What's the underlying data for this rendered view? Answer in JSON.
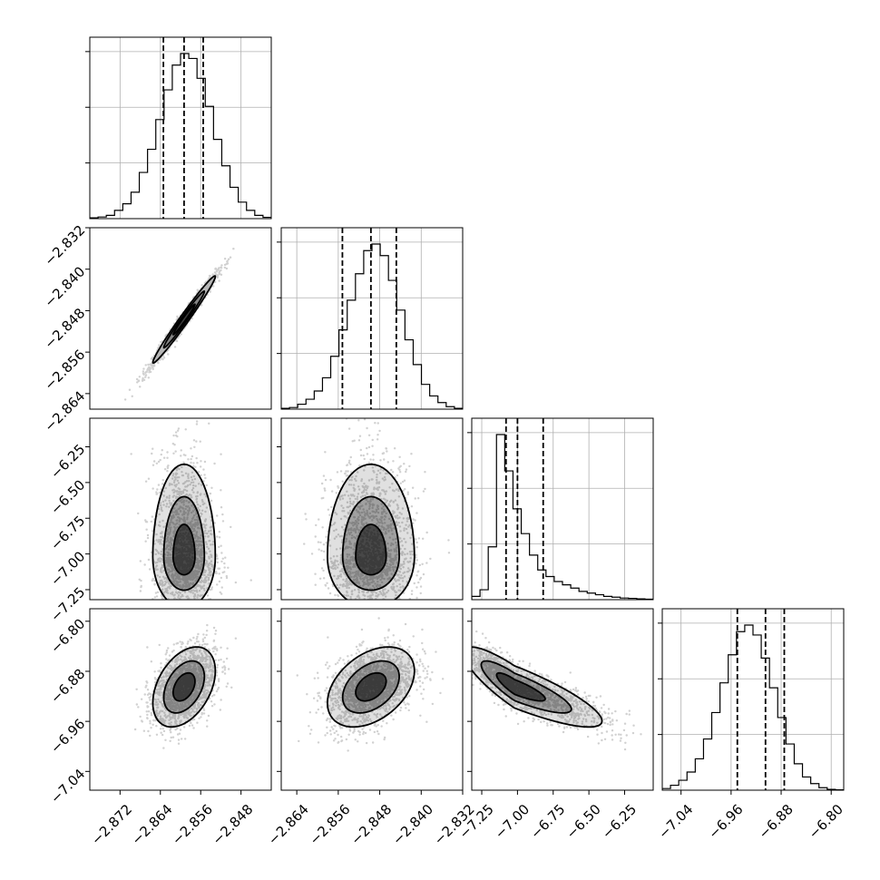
{
  "chart_data": {
    "type": "corner",
    "n_params": 4,
    "grid": true,
    "axes": [
      {
        "range": [
          -2.878,
          -2.842
        ],
        "ticks": [
          -2.872,
          -2.864,
          -2.856,
          -2.848
        ],
        "tick_labels": [
          "−2.872",
          "−2.864",
          "−2.856",
          "−2.848"
        ]
      },
      {
        "range": [
          -2.867,
          -2.832
        ],
        "ticks": [
          -2.864,
          -2.856,
          -2.848,
          -2.84,
          -2.832
        ],
        "tick_labels": [
          "−2.864",
          "−2.856",
          "−2.848",
          "−2.840",
          "−2.832"
        ]
      },
      {
        "range": [
          -7.32,
          -6.05
        ],
        "ticks": [
          -7.25,
          -7.0,
          -6.75,
          -6.5,
          -6.25
        ],
        "tick_labels": [
          "−7.25",
          "−7.00",
          "−6.75",
          "−6.50",
          "−6.25"
        ]
      },
      {
        "range": [
          -7.07,
          -6.78
        ],
        "ticks": [
          -7.04,
          -6.96,
          -6.88,
          -6.8
        ],
        "tick_labels": [
          "−7.04",
          "−6.96",
          "−6.88",
          "−6.80"
        ]
      }
    ],
    "quantiles": [
      [
        -2.8634,
        -2.8593,
        -2.8555
      ],
      [
        -2.8552,
        -2.8497,
        -2.8448
      ],
      [
        -7.08,
        -7.0,
        -6.82
      ],
      [
        -6.95,
        -6.905,
        -6.875
      ]
    ],
    "histograms": [
      [
        0.005,
        0.01,
        0.02,
        0.05,
        0.09,
        0.16,
        0.28,
        0.42,
        0.6,
        0.78,
        0.93,
        1.0,
        0.97,
        0.85,
        0.68,
        0.48,
        0.32,
        0.19,
        0.1,
        0.05,
        0.02,
        0.008
      ],
      [
        0.005,
        0.01,
        0.03,
        0.06,
        0.11,
        0.19,
        0.32,
        0.48,
        0.66,
        0.82,
        0.96,
        1.0,
        0.93,
        0.78,
        0.6,
        0.42,
        0.27,
        0.15,
        0.08,
        0.04,
        0.015,
        0.005
      ],
      [
        0.02,
        0.06,
        0.32,
        1.0,
        0.78,
        0.55,
        0.4,
        0.27,
        0.18,
        0.14,
        0.11,
        0.09,
        0.07,
        0.05,
        0.04,
        0.03,
        0.02,
        0.015,
        0.01,
        0.008,
        0.005,
        0.003
      ],
      [
        0.01,
        0.03,
        0.06,
        0.11,
        0.19,
        0.31,
        0.47,
        0.65,
        0.82,
        0.96,
        1.0,
        0.94,
        0.8,
        0.62,
        0.44,
        0.28,
        0.16,
        0.08,
        0.04,
        0.015,
        0.005,
        0.002
      ]
    ],
    "pairs": [
      {
        "row": 1,
        "col": 0,
        "center": [
          -2.8593,
          -2.8497
        ],
        "spread": [
          0.0031,
          0.0042
        ],
        "rho": 0.985
      },
      {
        "row": 2,
        "col": 0,
        "center": [
          -2.8593,
          -7.02
        ],
        "spread": [
          0.0031,
          0.18
        ],
        "rho": 0.0
      },
      {
        "row": 2,
        "col": 1,
        "center": [
          -2.8497,
          -7.02
        ],
        "spread": [
          0.0042,
          0.18
        ],
        "rho": 0.0
      },
      {
        "row": 3,
        "col": 0,
        "center": [
          -2.8593,
          -6.905
        ],
        "spread": [
          0.0031,
          0.032
        ],
        "rho": 0.4
      },
      {
        "row": 3,
        "col": 1,
        "center": [
          -2.8497,
          -6.905
        ],
        "spread": [
          0.0042,
          0.032
        ],
        "rho": 0.4
      },
      {
        "row": 3,
        "col": 2,
        "center": [
          -7.02,
          -6.905
        ],
        "spread": [
          0.18,
          0.032
        ],
        "rho": -0.85
      }
    ]
  }
}
